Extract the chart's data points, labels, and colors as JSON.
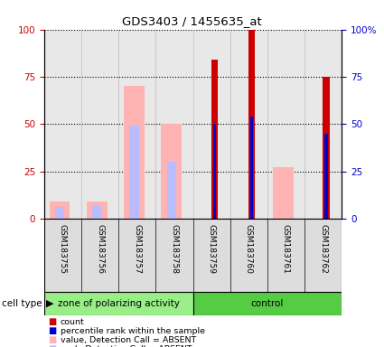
{
  "title": "GDS3403 / 1455635_at",
  "samples": [
    "GSM183755",
    "GSM183756",
    "GSM183757",
    "GSM183758",
    "GSM183759",
    "GSM183760",
    "GSM183761",
    "GSM183762"
  ],
  "groups": [
    "zone of polarizing activity",
    "zone of polarizing activity",
    "zone of polarizing activity",
    "zone of polarizing activity",
    "control",
    "control",
    "control",
    "control"
  ],
  "count_values": [
    null,
    null,
    null,
    null,
    84,
    100,
    null,
    75
  ],
  "percentile_values": [
    null,
    null,
    null,
    null,
    50,
    54,
    null,
    45
  ],
  "absent_value_values": [
    9,
    9,
    70,
    50,
    null,
    null,
    27,
    null
  ],
  "absent_rank_values": [
    6,
    7,
    49,
    30,
    null,
    null,
    null,
    null
  ],
  "count_color": "#cc0000",
  "percentile_color": "#0000cc",
  "absent_value_color": "#ffb3b3",
  "absent_rank_color": "#bbbbff",
  "ylim": [
    0,
    100
  ],
  "plot_bg_color": "#e8e8e8",
  "absent_bar_width": 0.55,
  "count_bar_width": 0.18,
  "percentile_bar_width": 0.08
}
